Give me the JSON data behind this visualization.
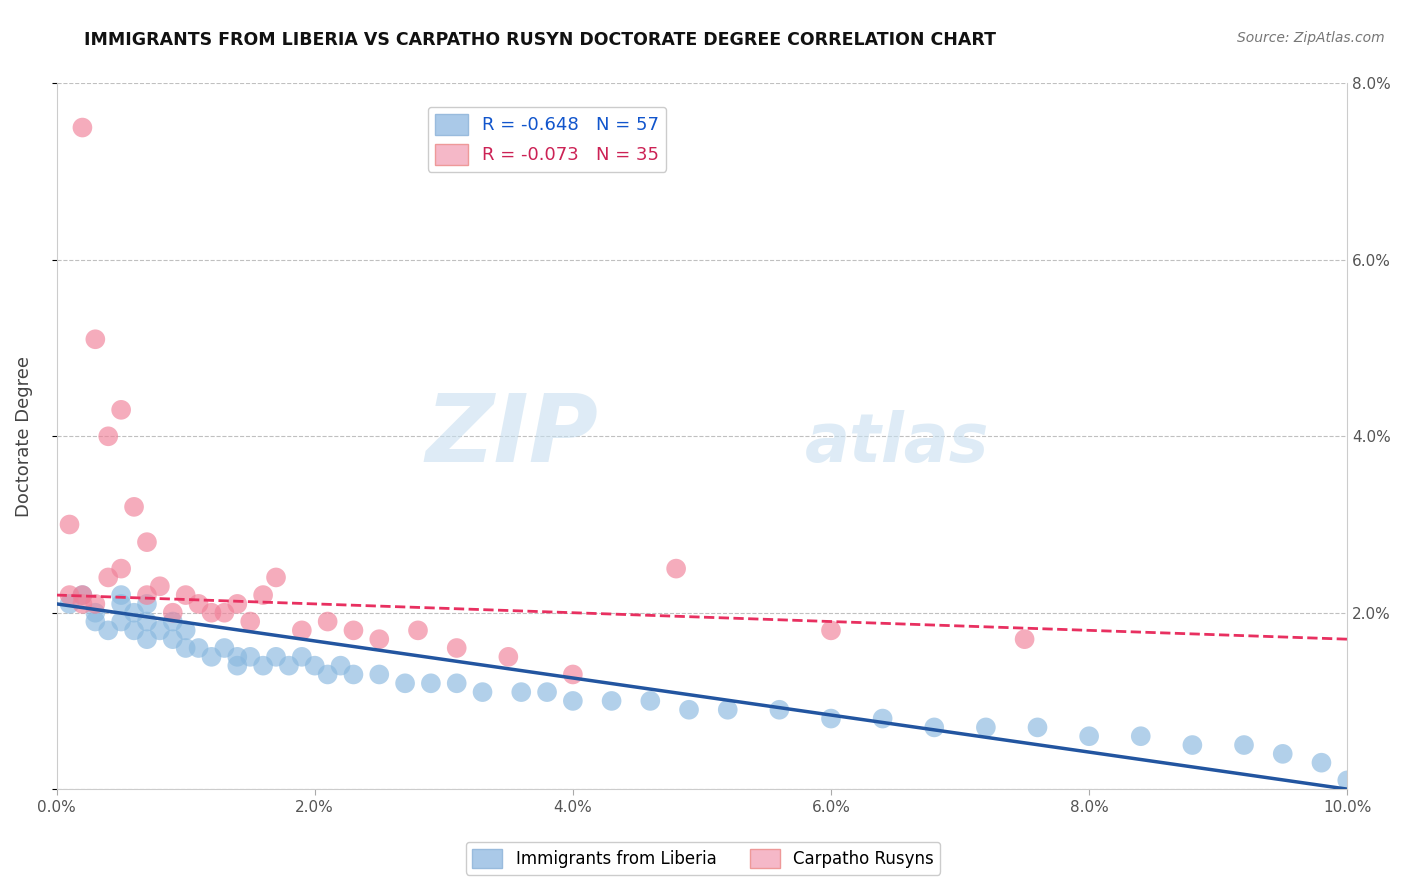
{
  "title": "IMMIGRANTS FROM LIBERIA VS CARPATHO RUSYN DOCTORATE DEGREE CORRELATION CHART",
  "source": "Source: ZipAtlas.com",
  "ylabel": "Doctorate Degree",
  "xmin": 0.0,
  "xmax": 0.1,
  "ymin": 0.0,
  "ymax": 0.08,
  "yticks": [
    0.0,
    0.02,
    0.04,
    0.06,
    0.08
  ],
  "ytick_labels_right": [
    "",
    "2.0%",
    "4.0%",
    "6.0%",
    "8.0%"
  ],
  "xticks": [
    0.0,
    0.02,
    0.04,
    0.06,
    0.08,
    0.1
  ],
  "xtick_labels": [
    "0.0%",
    "2.0%",
    "4.0%",
    "6.0%",
    "8.0%",
    "10.0%"
  ],
  "legend_entries": [
    {
      "label": "R = -0.648   N = 57",
      "color": "#aac9e8"
    },
    {
      "label": "R = -0.073   N = 35",
      "color": "#f5b8c8"
    }
  ],
  "liberia_color": "#89b8df",
  "carpatho_color": "#f08098",
  "liberia_line_color": "#2255a0",
  "carpatho_line_color": "#e83060",
  "watermark_zip": "ZIP",
  "watermark_atlas": "atlas",
  "liberia_x": [
    0.001,
    0.002,
    0.003,
    0.003,
    0.004,
    0.005,
    0.005,
    0.005,
    0.006,
    0.006,
    0.007,
    0.007,
    0.007,
    0.008,
    0.009,
    0.009,
    0.01,
    0.01,
    0.011,
    0.012,
    0.013,
    0.014,
    0.014,
    0.015,
    0.016,
    0.017,
    0.018,
    0.019,
    0.02,
    0.021,
    0.022,
    0.023,
    0.025,
    0.027,
    0.029,
    0.031,
    0.033,
    0.036,
    0.038,
    0.04,
    0.043,
    0.046,
    0.049,
    0.052,
    0.056,
    0.06,
    0.064,
    0.068,
    0.072,
    0.076,
    0.08,
    0.084,
    0.088,
    0.092,
    0.095,
    0.098,
    0.1
  ],
  "liberia_y": [
    0.021,
    0.022,
    0.02,
    0.019,
    0.018,
    0.022,
    0.021,
    0.019,
    0.02,
    0.018,
    0.021,
    0.019,
    0.017,
    0.018,
    0.019,
    0.017,
    0.018,
    0.016,
    0.016,
    0.015,
    0.016,
    0.015,
    0.014,
    0.015,
    0.014,
    0.015,
    0.014,
    0.015,
    0.014,
    0.013,
    0.014,
    0.013,
    0.013,
    0.012,
    0.012,
    0.012,
    0.011,
    0.011,
    0.011,
    0.01,
    0.01,
    0.01,
    0.009,
    0.009,
    0.009,
    0.008,
    0.008,
    0.007,
    0.007,
    0.007,
    0.006,
    0.006,
    0.005,
    0.005,
    0.004,
    0.003,
    0.001
  ],
  "carpatho_x": [
    0.001,
    0.001,
    0.002,
    0.002,
    0.002,
    0.003,
    0.003,
    0.004,
    0.004,
    0.005,
    0.005,
    0.006,
    0.007,
    0.007,
    0.008,
    0.009,
    0.01,
    0.011,
    0.012,
    0.013,
    0.014,
    0.015,
    0.016,
    0.017,
    0.019,
    0.021,
    0.023,
    0.025,
    0.028,
    0.031,
    0.035,
    0.04,
    0.048,
    0.06,
    0.075
  ],
  "carpatho_y": [
    0.022,
    0.03,
    0.075,
    0.022,
    0.021,
    0.051,
    0.021,
    0.04,
    0.024,
    0.043,
    0.025,
    0.032,
    0.028,
    0.022,
    0.023,
    0.02,
    0.022,
    0.021,
    0.02,
    0.02,
    0.021,
    0.019,
    0.022,
    0.024,
    0.018,
    0.019,
    0.018,
    0.017,
    0.018,
    0.016,
    0.015,
    0.013,
    0.025,
    0.018,
    0.017
  ],
  "liberia_trend": [
    0.021,
    0.0
  ],
  "carpatho_trend": [
    0.022,
    0.017
  ]
}
